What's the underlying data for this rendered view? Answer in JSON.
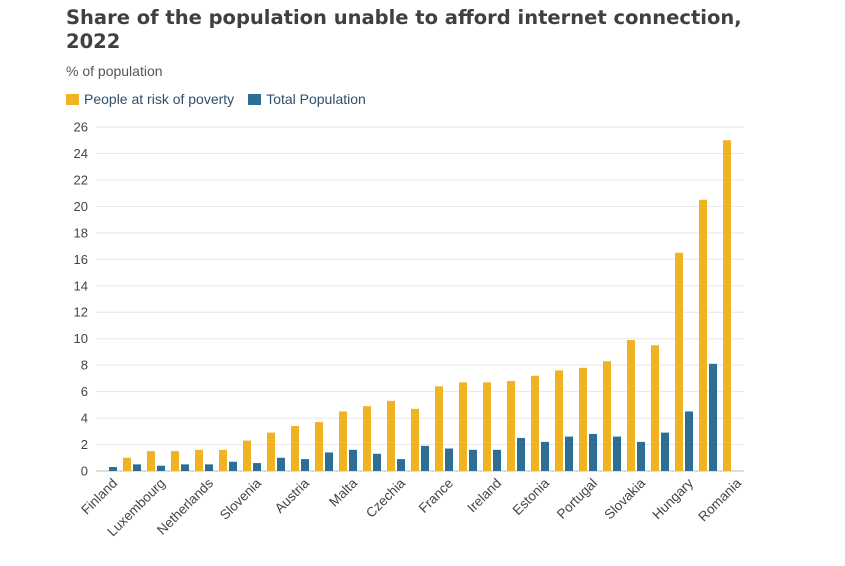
{
  "chart_data": {
    "type": "bar",
    "title": "Share of the population unable to afford internet connection, 2022",
    "subtitle": "% of population",
    "ylim": [
      0,
      26
    ],
    "yticks": [
      0,
      2,
      4,
      6,
      8,
      10,
      12,
      14,
      16,
      18,
      20,
      22,
      24,
      26
    ],
    "grid": true,
    "legend_position": "top-left",
    "categories": [
      "Finland",
      "Luxembourg",
      "Netherlands",
      "Slovenia",
      "Austria",
      "Malta",
      "Czechia",
      "France",
      "Ireland",
      "Estonia",
      "Portugal",
      "Slovakia",
      "Hungary",
      "Romania"
    ],
    "category_values": [
      {
        "poverty": 0.0,
        "total": 0.3
      },
      {
        "poverty": 1.0,
        "total": 0.5
      },
      {
        "poverty": 1.5,
        "total": 0.4
      },
      {
        "poverty": 1.5,
        "total": 0.5
      },
      {
        "poverty": 1.6,
        "total": 0.5
      },
      {
        "poverty": 1.6,
        "total": 0.7
      },
      {
        "poverty": 2.3,
        "total": 0.6
      },
      {
        "poverty": 2.9,
        "total": 1.0
      },
      {
        "poverty": 3.4,
        "total": 0.9
      },
      {
        "poverty": 3.7,
        "total": 1.4
      },
      {
        "poverty": 4.5,
        "total": 1.6
      },
      {
        "poverty": 4.9,
        "total": 1.3
      },
      {
        "poverty": 5.3,
        "total": 0.9
      },
      {
        "poverty": 4.7,
        "total": 1.9
      },
      {
        "poverty": 6.4,
        "total": 1.7
      },
      {
        "poverty": 6.7,
        "total": 1.6
      },
      {
        "poverty": 6.7,
        "total": 1.6
      },
      {
        "poverty": 6.8,
        "total": 2.5
      },
      {
        "poverty": 7.2,
        "total": 2.2
      },
      {
        "poverty": 7.6,
        "total": 2.6
      },
      {
        "poverty": 7.8,
        "total": 2.8
      },
      {
        "poverty": 8.3,
        "total": 2.6
      },
      {
        "poverty": 9.9,
        "total": 2.2
      },
      {
        "poverty": 9.5,
        "total": 2.9
      },
      {
        "poverty": 16.5,
        "total": 4.5
      },
      {
        "poverty": 20.5,
        "total": 8.1
      },
      {
        "poverty": 25.0,
        "total": 0.0
      }
    ],
    "series": [
      {
        "name": "People at risk of poverty",
        "color": "#f0b323"
      },
      {
        "name": "Total Population",
        "color": "#2d6f94"
      }
    ]
  }
}
